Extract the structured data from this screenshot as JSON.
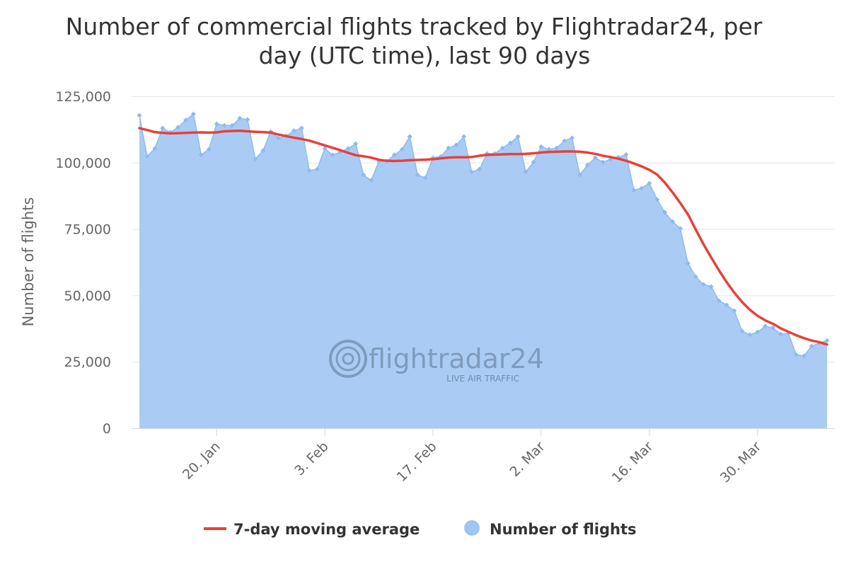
{
  "chart_data": {
    "type": "area",
    "title_lines": [
      "Number of commercial flights tracked by Flightradar24, per",
      "day (UTC time), last 90 days"
    ],
    "ylabel": "Number of flights",
    "xlabel": "",
    "ylim": [
      0,
      125000
    ],
    "yticks": [
      "0",
      "25,000",
      "50,000",
      "75,000",
      "100,000",
      "125,000"
    ],
    "ytick_values": [
      0,
      25000,
      50000,
      75000,
      100000,
      125000
    ],
    "xticks": [
      {
        "label": "20. Jan",
        "date": "20 Jan"
      },
      {
        "label": "3. Feb",
        "date": "3 Feb"
      },
      {
        "label": "17. Feb",
        "date": "17 Feb"
      },
      {
        "label": "2. Mar",
        "date": "2 Mar"
      },
      {
        "label": "16. Mar",
        "date": "16 Mar"
      },
      {
        "label": "30. Mar",
        "date": "30 Mar"
      }
    ],
    "grid": true,
    "legend_position": "bottom",
    "colors": {
      "flights_fill": "#aaccf4",
      "flights_line": "#8ebbef",
      "moving_average": "#e8403a",
      "grid": "#e6e6e6",
      "axis": "#ccd6eb"
    },
    "dates": [
      "10 Jan",
      "11 Jan",
      "12 Jan",
      "13 Jan",
      "14 Jan",
      "15 Jan",
      "16 Jan",
      "17 Jan",
      "18 Jan",
      "19 Jan",
      "20 Jan",
      "21 Jan",
      "22 Jan",
      "23 Jan",
      "24 Jan",
      "25 Jan",
      "26 Jan",
      "27 Jan",
      "28 Jan",
      "29 Jan",
      "30 Jan",
      "31 Jan",
      "1 Feb",
      "2 Feb",
      "3 Feb",
      "4 Feb",
      "5 Feb",
      "6 Feb",
      "7 Feb",
      "8 Feb",
      "9 Feb",
      "10 Feb",
      "11 Feb",
      "12 Feb",
      "13 Feb",
      "14 Feb",
      "15 Feb",
      "16 Feb",
      "17 Feb",
      "18 Feb",
      "19 Feb",
      "20 Feb",
      "21 Feb",
      "22 Feb",
      "23 Feb",
      "24 Feb",
      "25 Feb",
      "26 Feb",
      "27 Feb",
      "28 Feb",
      "29 Feb",
      "1 Mar",
      "2 Mar",
      "3 Mar",
      "4 Mar",
      "5 Mar",
      "6 Mar",
      "7 Mar",
      "8 Mar",
      "9 Mar",
      "10 Mar",
      "11 Mar",
      "12 Mar",
      "13 Mar",
      "14 Mar",
      "15 Mar",
      "16 Mar",
      "17 Mar",
      "18 Mar",
      "19 Mar",
      "20 Mar",
      "21 Mar",
      "22 Mar",
      "23 Mar",
      "24 Mar",
      "25 Mar",
      "26 Mar",
      "27 Mar",
      "28 Mar",
      "29 Mar",
      "30 Mar",
      "31 Mar",
      "1 Apr",
      "2 Apr",
      "3 Apr",
      "4 Apr",
      "5 Apr",
      "6 Apr",
      "7 Apr",
      "8 Apr"
    ],
    "series": [
      {
        "name": "Number of flights",
        "type": "area",
        "values": [
          117800,
          102300,
          105300,
          113000,
          111400,
          113300,
          116000,
          118300,
          102900,
          105000,
          114600,
          114000,
          114000,
          116700,
          116200,
          101300,
          104500,
          111700,
          109300,
          110000,
          112000,
          113000,
          97000,
          97500,
          105300,
          102900,
          104000,
          105300,
          107100,
          95400,
          93300,
          100500,
          100500,
          102900,
          105000,
          109800,
          95400,
          94300,
          101800,
          102300,
          105500,
          106600,
          109800,
          96500,
          97500,
          103400,
          103400,
          105500,
          107400,
          109800,
          96500,
          100200,
          106000,
          105000,
          105500,
          108200,
          109300,
          95400,
          99100,
          101800,
          100200,
          101300,
          102000,
          103000,
          89600,
          90400,
          92200,
          86100,
          81300,
          77800,
          75200,
          62100,
          57000,
          54100,
          53300,
          48000,
          46400,
          44200,
          36500,
          35200,
          36200,
          38400,
          37800,
          35400,
          35700,
          27700,
          27200,
          30900,
          32000,
          33000
        ]
      },
      {
        "name": "7-day moving average",
        "type": "line",
        "values": [
          113000,
          112300,
          111500,
          111200,
          111000,
          111100,
          111200,
          111300,
          111400,
          111300,
          111400,
          111800,
          111900,
          112000,
          111800,
          111600,
          111500,
          111300,
          110600,
          110000,
          109400,
          108900,
          108300,
          107400,
          106500,
          105600,
          104700,
          103700,
          102800,
          102400,
          101900,
          101100,
          100700,
          100600,
          100700,
          100900,
          101000,
          101100,
          101300,
          101600,
          101900,
          102000,
          102000,
          102100,
          102600,
          102900,
          103000,
          103100,
          103200,
          103200,
          103300,
          103500,
          103800,
          104000,
          104100,
          104200,
          104200,
          104100,
          103800,
          103300,
          102600,
          102100,
          101500,
          100700,
          99700,
          98600,
          97300,
          95500,
          92500,
          88800,
          84800,
          80500,
          74800,
          69300,
          64300,
          59500,
          55000,
          51000,
          47500,
          44600,
          42300,
          40600,
          39300,
          37600,
          36300,
          35000,
          33900,
          33000,
          32400,
          31500
        ]
      }
    ],
    "legend": [
      {
        "label": "7-day moving average",
        "symbol": "line"
      },
      {
        "label": "Number of flights",
        "symbol": "circle"
      }
    ]
  },
  "watermark": {
    "brand": "flightradar24",
    "tagline": "LIVE AIR TRAFFIC"
  }
}
